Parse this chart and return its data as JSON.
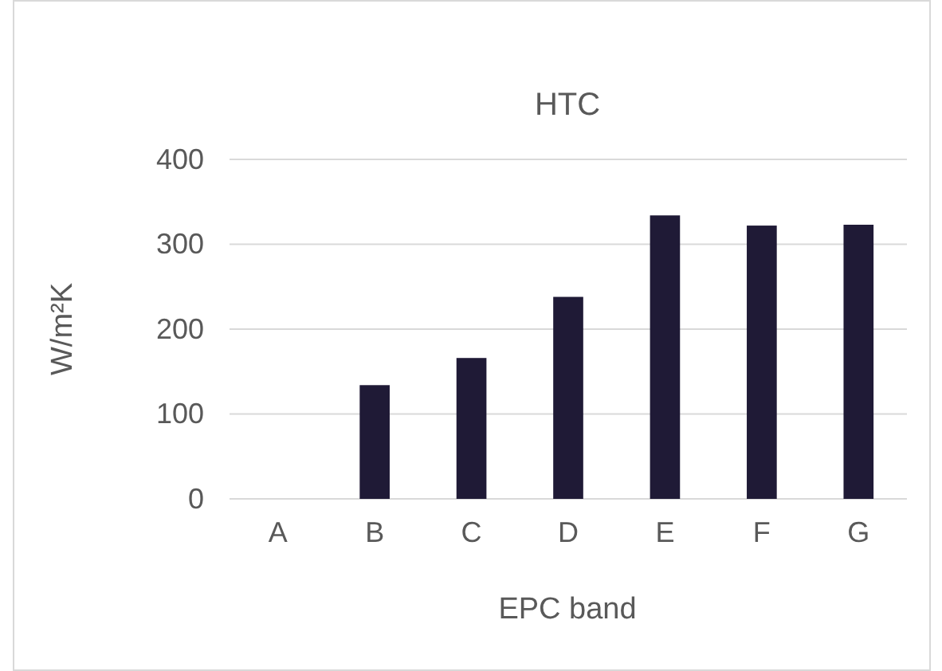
{
  "chart_data": {
    "type": "bar",
    "title": "HTC",
    "xlabel": "EPC band",
    "ylabel": "W/m²K",
    "categories": [
      "A",
      "B",
      "C",
      "D",
      "E",
      "F",
      "G"
    ],
    "values": [
      null,
      134,
      166,
      238,
      334,
      322,
      323
    ],
    "color": "#1f1a36",
    "ylim": [
      0,
      400
    ],
    "yticks": [
      0,
      100,
      200,
      300,
      400
    ],
    "grid": "y"
  }
}
